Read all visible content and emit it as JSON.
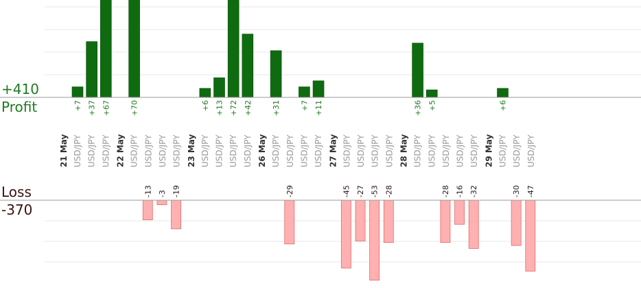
{
  "summary": {
    "profit_total": "+410",
    "profit_label": "Profit",
    "loss_label": "Loss",
    "loss_total": "-370"
  },
  "colors": {
    "profit_text": "#1f7a1f",
    "profit_bar": "#0f6b0f",
    "loss_text": "#3a1010",
    "loss_bar": "#ffb0b0",
    "loss_bar_stroke": "#e06a6a",
    "axis": "#9a9a9a",
    "grid": "#e7e7e7"
  },
  "chart_data": {
    "type": "bar",
    "title": "",
    "xlabel": "",
    "ylabel": "",
    "grid": true,
    "days": [
      {
        "label": "21 May",
        "trades": [
          {
            "pair": "USD/JPY",
            "value": 7
          },
          {
            "pair": "USD/JPY",
            "value": 37
          },
          {
            "pair": "USD/JPY",
            "value": 67
          }
        ]
      },
      {
        "label": "22 May",
        "trades": [
          {
            "pair": "USD/JPY",
            "value": 70
          },
          {
            "pair": "USD/JPY",
            "value": -13
          },
          {
            "pair": "USD/JPY",
            "value": -3
          },
          {
            "pair": "USD/JPY",
            "value": -19
          }
        ]
      },
      {
        "label": "23 May",
        "trades": [
          {
            "pair": "USD/JPY",
            "value": 6
          },
          {
            "pair": "USD/JPY",
            "value": 13
          },
          {
            "pair": "USD/JPY",
            "value": 72
          },
          {
            "pair": "USD/JPY",
            "value": 42
          }
        ]
      },
      {
        "label": "26 May",
        "trades": [
          {
            "pair": "USD/JPY",
            "value": 31
          },
          {
            "pair": "USD/JPY",
            "value": -29
          },
          {
            "pair": "USD/JPY",
            "value": 7
          },
          {
            "pair": "USD/JPY",
            "value": 11
          }
        ]
      },
      {
        "label": "27 May",
        "trades": [
          {
            "pair": "USD/JPY",
            "value": -45
          },
          {
            "pair": "USD/JPY",
            "value": -27
          },
          {
            "pair": "USD/JPY",
            "value": -53
          },
          {
            "pair": "USD/JPY",
            "value": -28
          }
        ]
      },
      {
        "label": "28 May",
        "trades": [
          {
            "pair": "USD/JPY",
            "value": 36
          },
          {
            "pair": "USD/JPY",
            "value": 5
          },
          {
            "pair": "USD/JPY",
            "value": -28
          },
          {
            "pair": "USD/JPY",
            "value": -16
          },
          {
            "pair": "USD/JPY",
            "value": -32
          }
        ]
      },
      {
        "label": "29 May",
        "trades": [
          {
            "pair": "USD/JPY",
            "value": 6
          },
          {
            "pair": "USD/JPY",
            "value": -30
          },
          {
            "pair": "USD/JPY",
            "value": -47
          }
        ]
      }
    ]
  }
}
